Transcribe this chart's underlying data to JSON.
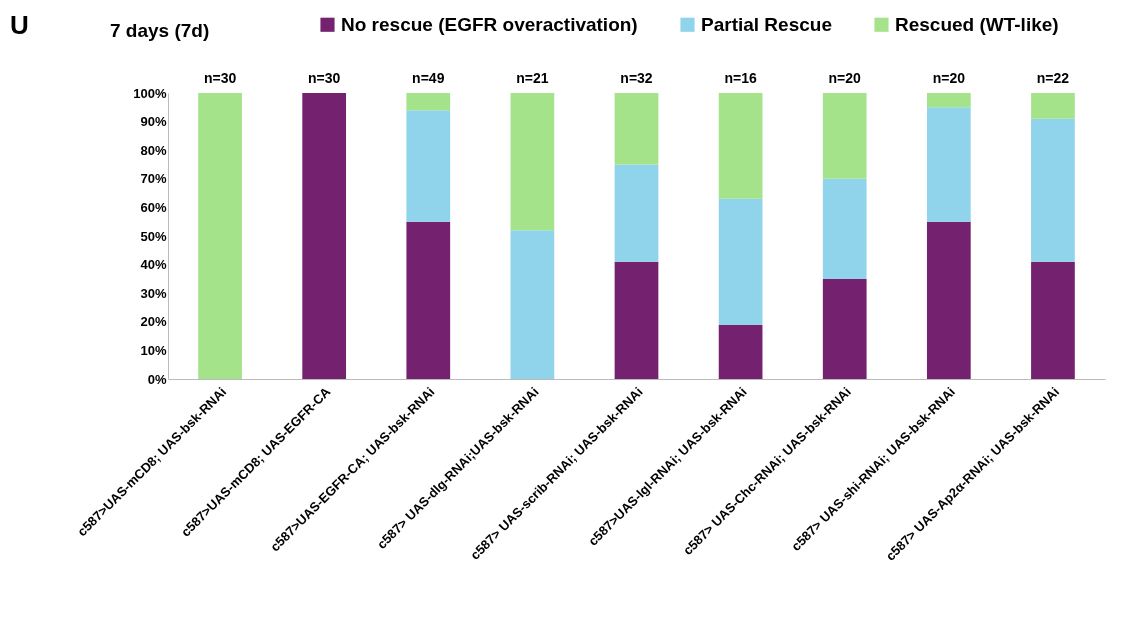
{
  "chart_data": {
    "type": "bar",
    "title": "7 days (7d)",
    "annotations": [
      "U",
      {
        "text": "n=30",
        "x": "c587>UAS-mCD8; UAS-bsk-RNAi",
        "y": 100
      },
      {
        "text": "n=30",
        "x": "c587>UAS-mCD8; UAS-EGFR-CA",
        "y": 100
      },
      {
        "text": "n=49",
        "x": "c587>UAS-EGFR-CA; UAS-bsk-RNAi",
        "y": 100
      },
      {
        "text": "n=21",
        "x": "c587> UAS-dlg-RNAi;UAS-bsk-RNAi",
        "y": 100
      },
      {
        "text": "n=32",
        "x": "c587> UAS-scrib-RNAi; UAS-bsk-RNAi",
        "y": 100
      },
      {
        "text": "n=16",
        "x": "c587>UAS-lgl-RNAi; UAS-bsk-RNAi",
        "y": 100
      },
      {
        "text": "n=20",
        "x": "c587> UAS-Chc-RNAi; UAS-bsk-RNAi",
        "y": 100
      },
      {
        "text": "n=20",
        "x": "c587> UAS-shi-RNAi; UAS-bsk-RNAi",
        "y": 100
      },
      {
        "text": "n=22",
        "x": "c587> UAS-Ap2α-RNAi; UAS-bsk-RNAi",
        "y": 100
      }
    ],
    "categories": [
      "c587>UAS-mCD8; UAS-bsk-RNAi",
      "c587>UAS-mCD8; UAS-EGFR-CA",
      "c587>UAS-EGFR-CA; UAS-bsk-RNAi",
      "c587> UAS-dlg-RNAi;UAS-bsk-RNAi",
      "c587> UAS-scrib-RNAi; UAS-bsk-RNAi",
      "c587>UAS-lgl-RNAi; UAS-bsk-RNAi",
      "c587> UAS-Chc-RNAi; UAS-bsk-RNAi",
      "c587> UAS-shi-RNAi; UAS-bsk-RNAi",
      "c587> UAS-Ap2α-RNAi; UAS-bsk-RNAi"
    ],
    "series": [
      {
        "name": "No rescue (EGFR overactivation)",
        "color": "#74226f",
        "values": [
          0,
          100,
          55,
          0,
          41,
          19,
          35,
          55,
          41
        ]
      },
      {
        "name": "Partial Rescue",
        "color": "#8fd4ea",
        "values": [
          0,
          0,
          39,
          52,
          34,
          44,
          35,
          40,
          50
        ]
      },
      {
        "name": "Rescued (WT-like)",
        "color": "#a5e38b",
        "values": [
          100,
          0,
          6,
          48,
          25,
          37,
          30,
          5,
          9
        ]
      }
    ],
    "stacked": true,
    "ylim": [
      0,
      100
    ],
    "yticks": [
      {
        "value": 0,
        "label": "0%"
      },
      {
        "value": 10,
        "label": "10%"
      },
      {
        "value": 20,
        "label": "20%"
      },
      {
        "value": 30,
        "label": "30%"
      },
      {
        "value": 40,
        "label": "40%"
      },
      {
        "value": 50,
        "label": "50%"
      },
      {
        "value": 60,
        "label": "60%"
      },
      {
        "value": 70,
        "label": "70%"
      },
      {
        "value": 80,
        "label": "80%"
      },
      {
        "value": 90,
        "label": "90%"
      },
      {
        "value": 100,
        "label": "100%"
      }
    ],
    "grid": false,
    "legend": "top"
  }
}
